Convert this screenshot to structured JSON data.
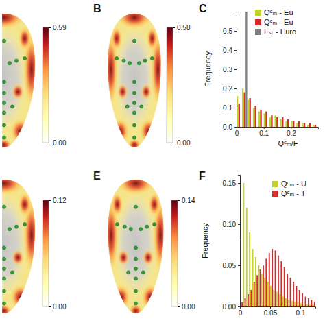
{
  "chart_data": [
    {
      "type": "heatmap",
      "colorbar_range": [
        0,
        0.59
      ],
      "colorbar_ticks": [
        {
          "value": 0,
          "label": "0.00"
        },
        0.59
      ]
    },
    {
      "type": "heatmap",
      "panel": "B",
      "colorbar_range": [
        0,
        0.58
      ],
      "colorbar_ticks": [
        {
          "value": 0,
          "label": "0.00"
        },
        0.58
      ]
    },
    {
      "type": "histogram",
      "panel": "C",
      "xlabel": "Qᶜₘ/F",
      "ylabel": "Frequency",
      "bins": [
        0,
        0.02,
        0.04,
        0.06,
        0.08,
        0.1,
        0.12,
        0.14,
        0.16,
        0.18,
        0.2,
        0.22,
        0.24,
        0.26,
        0.28,
        0.3
      ],
      "series": [
        {
          "name": "Qᶜₘ - Eu",
          "color": "#c3d32a",
          "values": [
            0.16,
            0.2,
            0.14,
            0.1,
            0.08,
            0.07,
            0.05,
            0.06,
            0.04,
            0.03,
            0.03,
            0.02,
            0.02,
            0.01,
            0.01
          ]
        },
        {
          "name": "Qᶜₘ - Eu",
          "color": "#d42a2a",
          "values": [
            0.12,
            0.18,
            0.15,
            0.11,
            0.09,
            0.08,
            0.06,
            0.05,
            0.05,
            0.04,
            0.03,
            0.03,
            0.02,
            0.02,
            0.01
          ]
        },
        {
          "name": "Fₛₜ - Euro",
          "color": "#7f7f7f",
          "values": [
            0,
            0.6,
            0,
            0,
            0,
            0,
            0,
            0,
            0,
            0,
            0,
            0,
            0,
            0,
            0
          ]
        }
      ],
      "xlim": [
        0,
        0.3
      ],
      "xticks": [
        0,
        0.1,
        0.2
      ],
      "ylim": [
        0,
        0.6
      ],
      "yticks": [
        {
          "value": 0,
          "label": "0.0"
        },
        0.1,
        0.2,
        0.3,
        0.4,
        0.5
      ],
      "legend": "top-right"
    },
    {
      "type": "heatmap",
      "colorbar_range": [
        0,
        0.12
      ],
      "colorbar_ticks": [
        {
          "value": 0,
          "label": "0.00"
        },
        0.12
      ]
    },
    {
      "type": "heatmap",
      "panel": "E",
      "colorbar_range": [
        0,
        0.14
      ],
      "colorbar_ticks": [
        {
          "value": 0,
          "label": "0.00"
        },
        0.14
      ]
    },
    {
      "type": "histogram",
      "panel": "F",
      "ylabel": "Frequency",
      "bins": [
        0,
        0.005,
        0.01,
        0.015,
        0.02,
        0.025,
        0.03,
        0.035,
        0.04,
        0.045,
        0.05,
        0.055,
        0.06,
        0.065,
        0.07,
        0.075,
        0.08,
        0.085,
        0.09,
        0.095,
        0.1,
        0.105,
        0.11,
        0.115,
        0.12,
        0.125
      ],
      "series": [
        {
          "name": "Qᶜₘ - U",
          "color": "#c3d32a",
          "values": [
            0.08,
            0.15,
            0.12,
            0.09,
            0.07,
            0.06,
            0.05,
            0.04,
            0.035,
            0.03,
            0.025,
            0.02,
            0.018,
            0.015,
            0.012,
            0.01,
            0.008,
            0.007,
            0.006,
            0.005,
            0.004,
            0.003,
            0.003,
            0.002,
            0.002
          ]
        },
        {
          "name": "Qᶜₘ - T",
          "color": "#d42a2a",
          "values": [
            0.005,
            0.01,
            0.015,
            0.02,
            0.03,
            0.038,
            0.045,
            0.05,
            0.058,
            0.065,
            0.07,
            0.068,
            0.062,
            0.055,
            0.048,
            0.04,
            0.035,
            0.03,
            0.025,
            0.02,
            0.016,
            0.012,
            0.01,
            0.008,
            0.006
          ]
        }
      ],
      "xlim": [
        0,
        0.125
      ],
      "xticks": [
        0,
        0.05,
        0.1
      ],
      "ylim": [
        0,
        0.16
      ],
      "yticks": [
        {
          "value": 0,
          "label": "0.00"
        },
        0.05,
        {
          "value": 0.1,
          "label": "0.10"
        },
        0.15
      ],
      "legend": "top-right"
    }
  ]
}
